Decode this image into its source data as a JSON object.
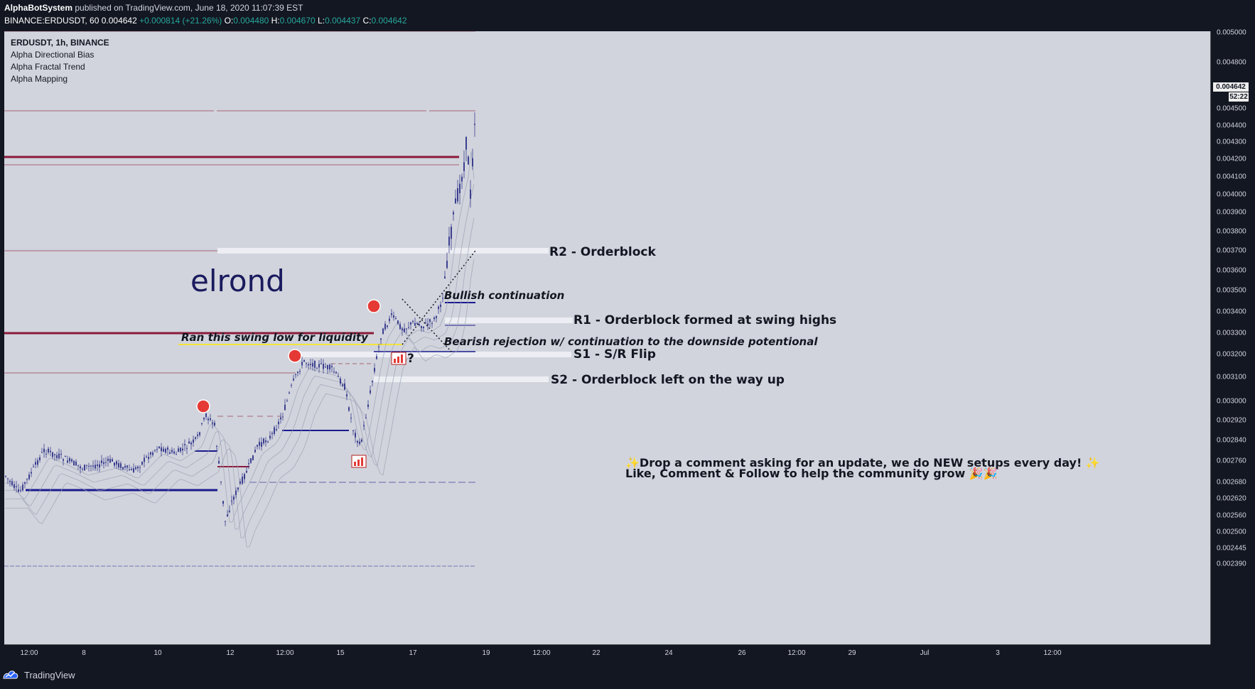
{
  "header": {
    "author": "AlphaBotSystem",
    "published": "published on TradingView.com, June 18, 2020 11:07:39 EST"
  },
  "symbol_line": {
    "symbol": "BINANCE:ERDUSDT, 60",
    "last": "0.004642",
    "change": "+0.000814 (+21.26%)",
    "o_label": "O:",
    "o": "0.004480",
    "h_label": "H:",
    "h": "0.004670",
    "l_label": "L:",
    "l": "0.004437",
    "c_label": "C:",
    "c": "0.004642"
  },
  "legend": {
    "title": "ERDUSDT, 1h, BINANCE",
    "indicators": [
      "Alpha Directional Bias",
      "Alpha Fractal Trend",
      "Alpha Mapping"
    ]
  },
  "price_axis": {
    "ticks": [
      "0.005000",
      "0.004800",
      "0.004500",
      "0.004400",
      "0.004300",
      "0.004200",
      "0.004100",
      "0.004000",
      "0.003900",
      "0.003800",
      "0.003700",
      "0.003600",
      "0.003500",
      "0.003400",
      "0.003300",
      "0.003200",
      "0.003100",
      "0.003000",
      "0.002920",
      "0.002840",
      "0.002760",
      "0.002680",
      "0.002620",
      "0.002560",
      "0.002500",
      "0.002445",
      "0.002390"
    ],
    "last_price": "0.004642",
    "countdown": "52:22"
  },
  "time_axis": {
    "ticks": [
      "12:00",
      "8",
      "10",
      "12",
      "12:00",
      "15",
      "17",
      "19",
      "12:00",
      "22",
      "24",
      "26",
      "12:00",
      "29",
      "Jul",
      "3",
      "12:00"
    ]
  },
  "annotations": {
    "title": "elrond",
    "r2": "R2 - Orderblock",
    "r1": "R1 - Orderblock formed at swing highs",
    "s1": "S1 - S/R Flip",
    "s2": "S2 - Orderblock left on the way up",
    "bullish": "Bullish continuation",
    "bearish": "Bearish rejection w/ continuation to the downside potentional",
    "ran_low": "Ran this swing low for liquidity",
    "question": "?",
    "comment_line1": "✨Drop a comment asking for an update, we do NEW setups every day! ✨",
    "comment_line2": "Like, Comment & Follow to help the community grow 🎉🎉"
  },
  "footer": {
    "brand": "TradingView"
  },
  "colors": {
    "background": "#131722",
    "chart_bg": "#d1d4dc",
    "candle": "#3b3f8f",
    "level_line": "#8b1a3a",
    "zone": "#eceef3",
    "blue_line": "#1a1a8e",
    "yellow_line": "#f5e43a",
    "signal_red": "#e53935",
    "text_green": "#26a69a"
  }
}
